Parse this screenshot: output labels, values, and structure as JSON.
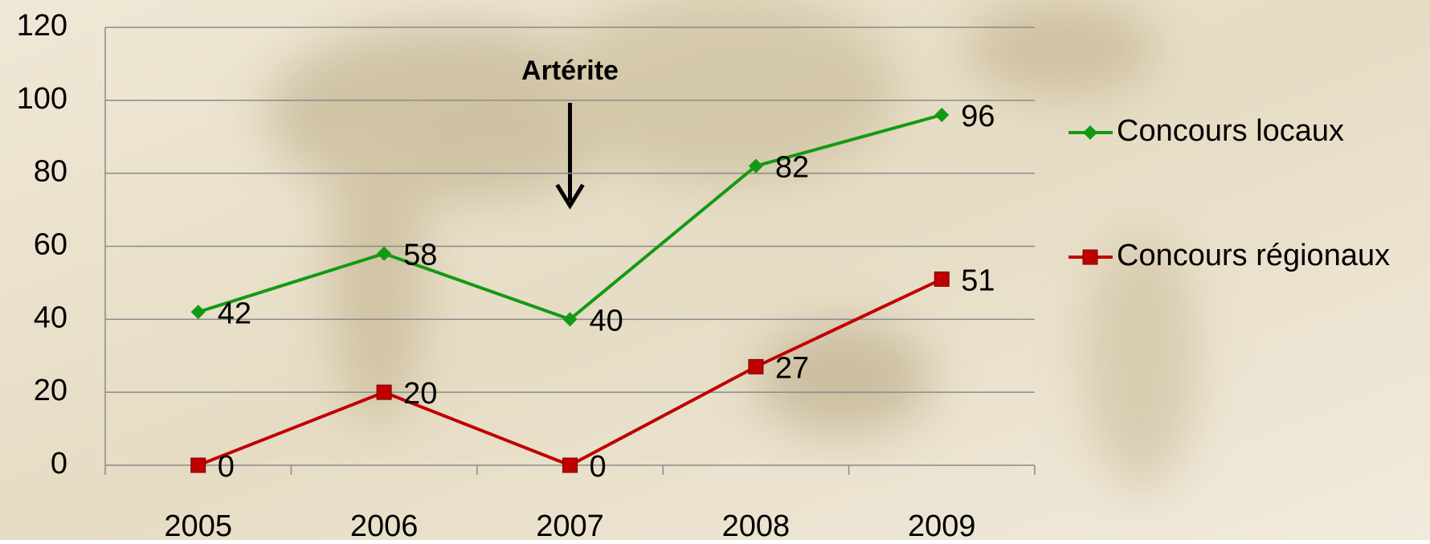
{
  "chart_data": {
    "type": "line",
    "annotation": "Artérite",
    "categories": [
      "2005",
      "2006",
      "2007",
      "2008",
      "2009"
    ],
    "series": [
      {
        "name": "Concours locaux",
        "color": "#139a13",
        "marker": "diamond",
        "values": [
          42,
          58,
          40,
          82,
          96
        ]
      },
      {
        "name": "Concours régionaux",
        "color": "#c00000",
        "marker": "square",
        "values": [
          0,
          20,
          0,
          27,
          51
        ]
      }
    ],
    "ylim": [
      0,
      120
    ],
    "yticks": [
      0,
      20,
      40,
      60,
      80,
      100,
      120
    ],
    "grid": true,
    "legend": "right"
  }
}
